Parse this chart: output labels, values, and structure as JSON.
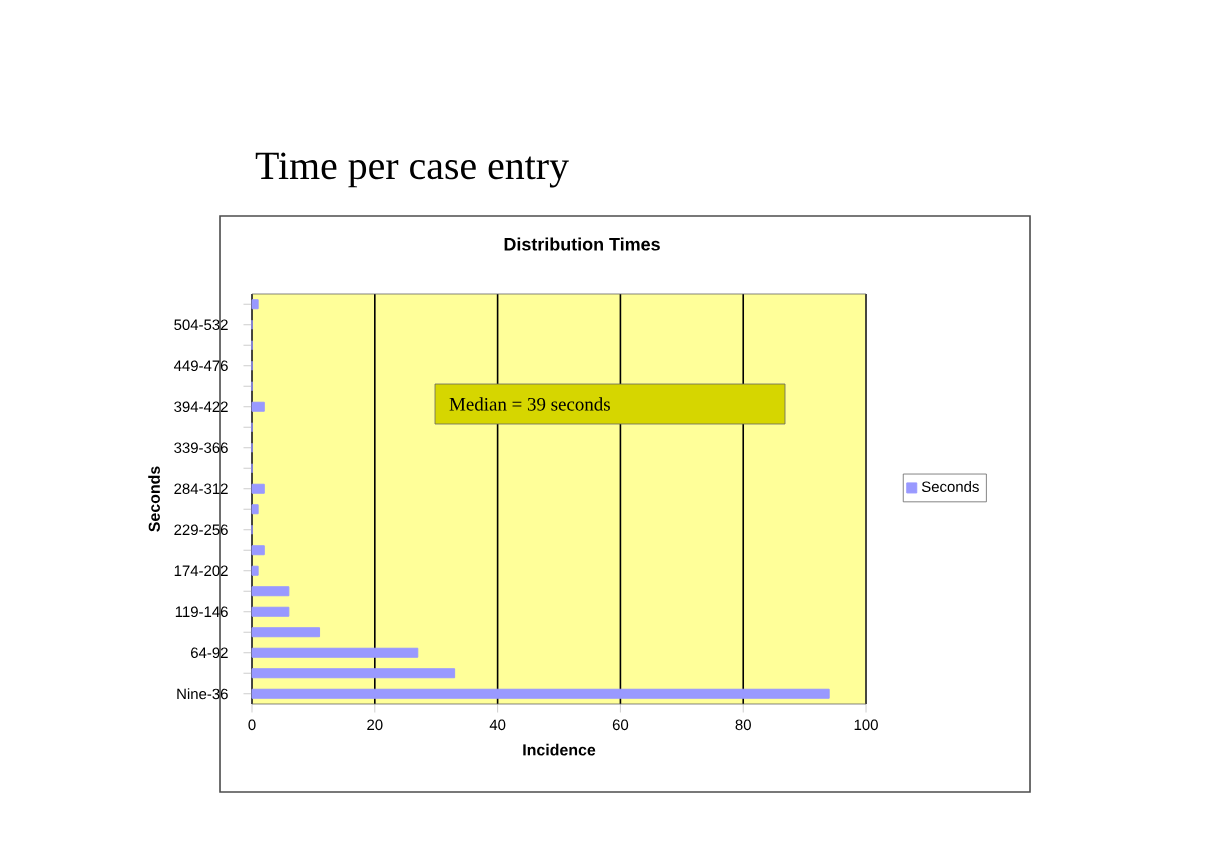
{
  "chart_data": {
    "type": "bar",
    "orientation": "horizontal",
    "title": "Time per case entry",
    "subtitle": "Distribution Times",
    "xlabel": "Incidence",
    "ylabel": "Seconds",
    "annotations": [
      "Median = 39 seconds"
    ],
    "categories": [
      null,
      "504-532",
      null,
      "449-476",
      null,
      "394-422",
      null,
      "339-366",
      null,
      "284-312",
      null,
      "229-256",
      null,
      "174-202",
      null,
      "119-146",
      null,
      "64-92",
      null,
      "Nine-36"
    ],
    "series": [
      {
        "name": "Seconds",
        "color": "#9999ff",
        "values": [
          1,
          0,
          0,
          0,
          0,
          2,
          0,
          0,
          0,
          2,
          1,
          0,
          2,
          1,
          6,
          6,
          11,
          27,
          33,
          94
        ]
      }
    ],
    "xlim": [
      0,
      100
    ],
    "xticks": [
      0,
      20,
      40,
      60,
      80,
      100
    ],
    "grid": "x",
    "legend": "right"
  }
}
